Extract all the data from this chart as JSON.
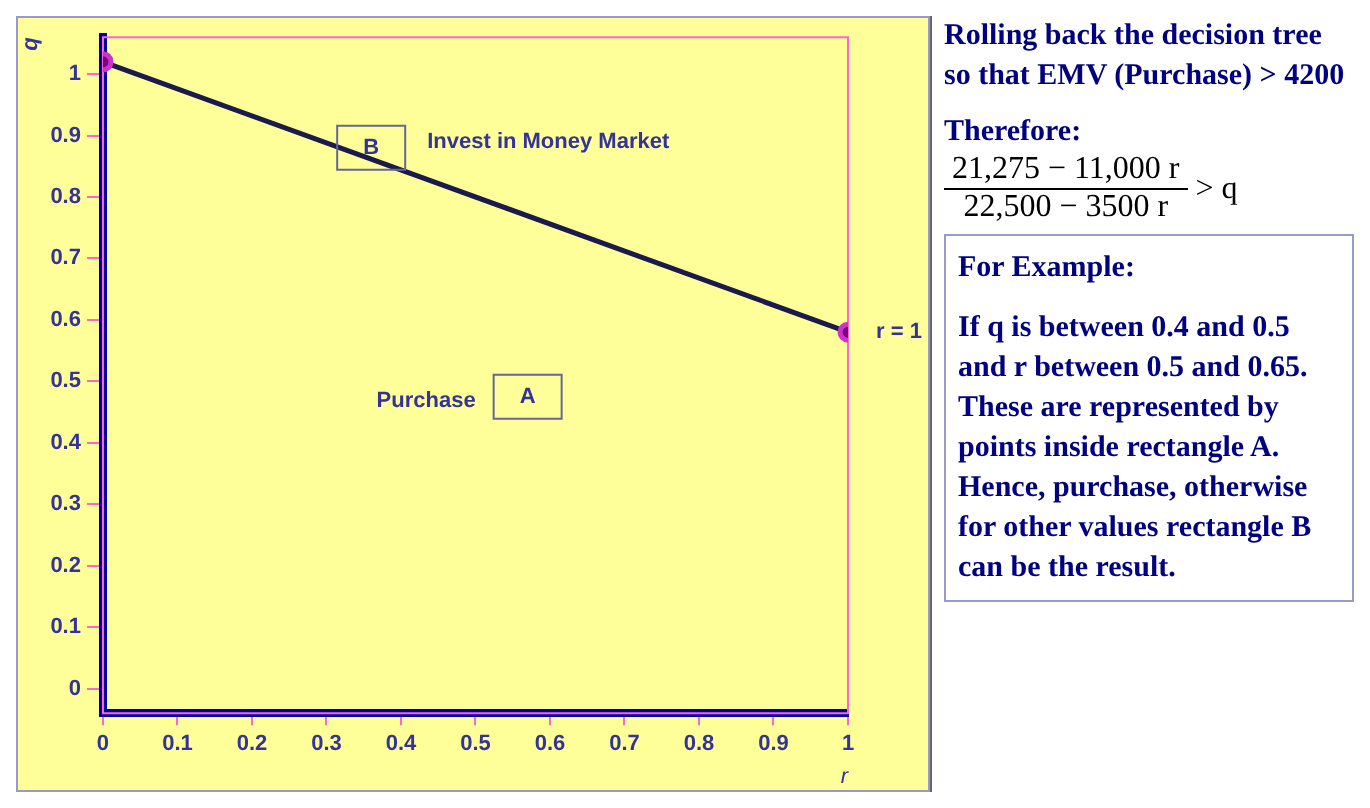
{
  "chart_data": {
    "type": "line",
    "xlabel": "r",
    "ylabel": "q",
    "series": [
      {
        "color": "#1a1a4d",
        "x": [
          0,
          1
        ],
        "values": [
          1.02,
          0.58
        ]
      }
    ],
    "marker": "circle",
    "line_style": "solid",
    "grid": false,
    "xlim": [
      0,
      1
    ],
    "ylim": [
      -0.04,
      1.06
    ],
    "xticks": [
      0,
      0.1,
      0.2,
      0.3,
      0.4,
      0.5,
      0.6,
      0.7,
      0.8,
      0.9,
      1
    ],
    "yticks": [
      0,
      0.1,
      0.2,
      0.3,
      0.4,
      0.5,
      0.6,
      0.7,
      0.8,
      0.9,
      1
    ],
    "annotations": [
      {
        "text": "r = 1",
        "x": 1,
        "y": 0.58
      },
      {
        "text": "B",
        "x": 0.36,
        "y": 0.88
      },
      {
        "text": "A",
        "x": 0.57,
        "y": 0.475
      },
      "Invest in Money Market",
      "Purchase",
      "Rolling back the decision tree so that EMV (Purchase) > 4200",
      "Therefore:",
      "21,275 − 11,000 r",
      "22,500 − 3500 r",
      "> q",
      "For Example:",
      "If q is between 0.4 and 0.5 and r between 0.5 and 0.65. These are represented by points inside rectangle A. Hence, purchase, otherwise for other values rectangle B can be the result."
    ]
  }
}
